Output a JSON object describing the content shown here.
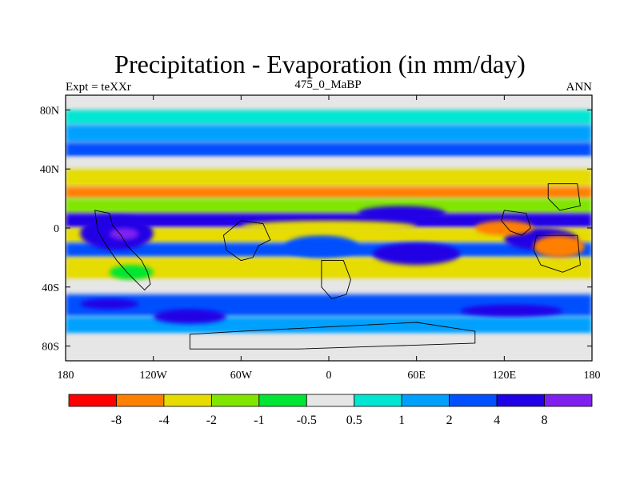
{
  "title": "Precipitation - Evaporation (in mm/day)",
  "left_label": "Expt = teXXr",
  "center_label": "475_0_MaBP",
  "right_label": "ANN",
  "map": {
    "lon_range": [
      -180,
      180
    ],
    "lat_range": [
      -90,
      90
    ],
    "background_color": "#e6e6e6",
    "y_ticks": [
      {
        "lat": 80,
        "label": "80N"
      },
      {
        "lat": 40,
        "label": "40N"
      },
      {
        "lat": 0,
        "label": "0"
      },
      {
        "lat": -40,
        "label": "40S"
      },
      {
        "lat": -80,
        "label": "80S"
      }
    ],
    "x_ticks": [
      {
        "lon": -180,
        "label": "180"
      },
      {
        "lon": -120,
        "label": "120W"
      },
      {
        "lon": -60,
        "label": "60W"
      },
      {
        "lon": 0,
        "label": "0"
      },
      {
        "lon": 60,
        "label": "60E"
      },
      {
        "lon": 120,
        "label": "120E"
      },
      {
        "lon": 180,
        "label": "180"
      }
    ]
  },
  "colorbar": {
    "colors": [
      "#ff0000",
      "#ff8000",
      "#e6dc00",
      "#80e600",
      "#00e632",
      "#e6e6e6",
      "#00e6d2",
      "#00a0ff",
      "#0050ff",
      "#2000e6",
      "#8020f0"
    ],
    "labels": [
      "-8",
      "-4",
      "-2",
      "-1",
      "-0.5",
      "0.5",
      "1",
      "2",
      "4",
      "8"
    ]
  },
  "chart_data": {
    "type": "heatmap",
    "title": "Precipitation - Evaporation (in mm/day)",
    "xlabel": "",
    "ylabel": "",
    "x_range": [
      -180,
      180
    ],
    "y_range": [
      -90,
      90
    ],
    "levels": [
      -8,
      -4,
      -2,
      -1,
      -0.5,
      0.5,
      1,
      2,
      4,
      8
    ],
    "bands": [
      {
        "lat": [
          80,
          90
        ],
        "lon": [
          -180,
          180
        ],
        "value": 0
      },
      {
        "lat": [
          70,
          80
        ],
        "lon": [
          -180,
          180
        ],
        "value": 0.7
      },
      {
        "lat": [
          58,
          70
        ],
        "lon": [
          -180,
          180
        ],
        "value": 1.5
      },
      {
        "lat": [
          48,
          58
        ],
        "lon": [
          -180,
          180
        ],
        "value": 3
      },
      {
        "lat": [
          40,
          48
        ],
        "lon": [
          -180,
          180
        ],
        "value": 0
      },
      {
        "lat": [
          28,
          40
        ],
        "lon": [
          -180,
          180
        ],
        "value": -2.5
      },
      {
        "lat": [
          20,
          28
        ],
        "lon": [
          -180,
          180
        ],
        "value": -5
      },
      {
        "lat": [
          10,
          20
        ],
        "lon": [
          -180,
          180
        ],
        "value": -1.5
      },
      {
        "lat": [
          0,
          10
        ],
        "lon": [
          -180,
          180
        ],
        "value": 5
      },
      {
        "lat": [
          -10,
          0
        ],
        "lon": [
          -180,
          180
        ],
        "value": -2.5
      },
      {
        "lat": [
          -20,
          -10
        ],
        "lon": [
          -180,
          180
        ],
        "value": 3
      },
      {
        "lat": [
          -35,
          -20
        ],
        "lon": [
          -180,
          180
        ],
        "value": -3
      },
      {
        "lat": [
          -45,
          -35
        ],
        "lon": [
          -180,
          180
        ],
        "value": 0
      },
      {
        "lat": [
          -60,
          -45
        ],
        "lon": [
          -180,
          180
        ],
        "value": 2
      },
      {
        "lat": [
          -72,
          -60
        ],
        "lon": [
          -180,
          180
        ],
        "value": 1.5
      },
      {
        "lat": [
          -90,
          -72
        ],
        "lon": [
          -180,
          180
        ],
        "value": 0
      }
    ],
    "regions": [
      {
        "lat": [
          -15,
          8
        ],
        "lon": [
          -170,
          -120
        ],
        "value": 6
      },
      {
        "lat": [
          -8,
          0
        ],
        "lon": [
          -150,
          -130
        ],
        "value": 9
      },
      {
        "lat": [
          -20,
          -5
        ],
        "lon": [
          -30,
          20
        ],
        "value": 3
      },
      {
        "lat": [
          -25,
          -10
        ],
        "lon": [
          30,
          90
        ],
        "value": 5
      },
      {
        "lat": [
          -15,
          0
        ],
        "lon": [
          120,
          170
        ],
        "value": 5
      },
      {
        "lat": [
          -20,
          -5
        ],
        "lon": [
          140,
          175
        ],
        "value": -5
      },
      {
        "lat": [
          -5,
          5
        ],
        "lon": [
          100,
          140
        ],
        "value": -5
      },
      {
        "lat": [
          5,
          15
        ],
        "lon": [
          20,
          80
        ],
        "value": 4
      },
      {
        "lat": [
          -3,
          5
        ],
        "lon": [
          -60,
          60
        ],
        "value": -3
      },
      {
        "lat": [
          -55,
          -48
        ],
        "lon": [
          -170,
          -130
        ],
        "value": 5
      },
      {
        "lat": [
          -65,
          -55
        ],
        "lon": [
          -120,
          -70
        ],
        "value": 5
      },
      {
        "lat": [
          -60,
          -52
        ],
        "lon": [
          90,
          160
        ],
        "value": 5
      },
      {
        "lat": [
          -35,
          -25
        ],
        "lon": [
          -150,
          -120
        ],
        "value": -1
      }
    ]
  }
}
